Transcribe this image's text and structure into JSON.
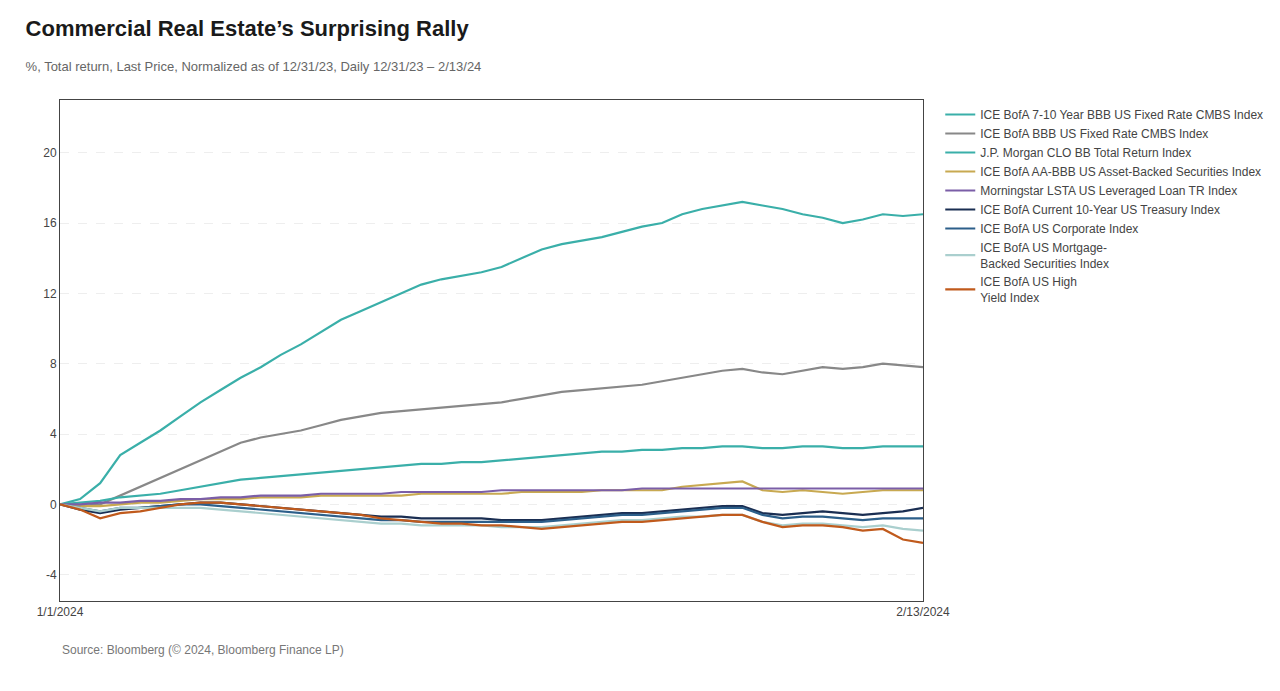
{
  "chart_data": {
    "type": "line",
    "title": "Commercial Real Estate’s Surprising Rally",
    "subtitle": "%, Total return, Last Price, Normalized as of 12/31/23, Daily 12/31/23 – 2/13/24",
    "annotations": [
      "Source: Bloomberg (© 2024, Bloomberg Finance LP)"
    ],
    "categories": [
      "1/1/2024",
      null,
      null,
      null,
      null,
      null,
      null,
      null,
      null,
      null,
      null,
      null,
      null,
      null,
      null,
      null,
      null,
      null,
      null,
      null,
      null,
      null,
      null,
      null,
      null,
      null,
      null,
      null,
      null,
      null,
      null,
      null,
      null,
      null,
      null,
      null,
      null,
      null,
      null,
      null,
      null,
      null,
      null,
      "2/13/2024"
    ],
    "series": [
      {
        "name": "ICE BofA 7-10 Year BBB US Fixed Rate CMBS Index",
        "color": "#3aafa9",
        "values": [
          0,
          0.3,
          1.2,
          2.8,
          3.5,
          4.2,
          5.0,
          5.8,
          6.5,
          7.2,
          7.8,
          8.5,
          9.1,
          9.8,
          10.5,
          11.0,
          11.5,
          12.0,
          12.5,
          12.8,
          13.0,
          13.2,
          13.5,
          14.0,
          14.5,
          14.8,
          15.0,
          15.2,
          15.5,
          15.8,
          16.0,
          16.5,
          16.8,
          17.0,
          17.2,
          17.0,
          16.8,
          16.5,
          16.3,
          16.0,
          16.2,
          16.5,
          16.4,
          16.5
        ]
      },
      {
        "name": "ICE BofA BBB US Fixed Rate CMBS Index",
        "color": "#888888",
        "values": [
          0,
          -0.1,
          0.0,
          0.5,
          1.0,
          1.5,
          2.0,
          2.5,
          3.0,
          3.5,
          3.8,
          4.0,
          4.2,
          4.5,
          4.8,
          5.0,
          5.2,
          5.3,
          5.4,
          5.5,
          5.6,
          5.7,
          5.8,
          6.0,
          6.2,
          6.4,
          6.5,
          6.6,
          6.7,
          6.8,
          7.0,
          7.2,
          7.4,
          7.6,
          7.7,
          7.5,
          7.4,
          7.6,
          7.8,
          7.7,
          7.8,
          8.0,
          7.9,
          7.8
        ]
      },
      {
        "name": "J.P. Morgan CLO BB Total Return Index",
        "color": "#3aafa9",
        "values": [
          0,
          0.1,
          0.2,
          0.4,
          0.5,
          0.6,
          0.8,
          1.0,
          1.2,
          1.4,
          1.5,
          1.6,
          1.7,
          1.8,
          1.9,
          2.0,
          2.1,
          2.2,
          2.3,
          2.3,
          2.4,
          2.4,
          2.5,
          2.6,
          2.7,
          2.8,
          2.9,
          3.0,
          3.0,
          3.1,
          3.1,
          3.2,
          3.2,
          3.3,
          3.3,
          3.2,
          3.2,
          3.3,
          3.3,
          3.2,
          3.2,
          3.3,
          3.3,
          3.3
        ]
      },
      {
        "name": "ICE BofA AA-BBB US Asset-Backed Securities Index",
        "color": "#c8a951",
        "values": [
          0,
          -0.1,
          -0.1,
          0.0,
          0.1,
          0.1,
          0.2,
          0.3,
          0.3,
          0.3,
          0.4,
          0.4,
          0.4,
          0.5,
          0.5,
          0.5,
          0.5,
          0.5,
          0.6,
          0.6,
          0.6,
          0.6,
          0.6,
          0.7,
          0.7,
          0.7,
          0.7,
          0.8,
          0.8,
          0.8,
          0.8,
          1.0,
          1.1,
          1.2,
          1.3,
          0.8,
          0.7,
          0.8,
          0.7,
          0.6,
          0.7,
          0.8,
          0.8,
          0.8
        ]
      },
      {
        "name": "Morningstar LSTA US Leveraged Loan TR Index",
        "color": "#7b5ea7",
        "values": [
          0,
          0.0,
          0.1,
          0.1,
          0.2,
          0.2,
          0.3,
          0.3,
          0.4,
          0.4,
          0.5,
          0.5,
          0.5,
          0.6,
          0.6,
          0.6,
          0.6,
          0.7,
          0.7,
          0.7,
          0.7,
          0.7,
          0.8,
          0.8,
          0.8,
          0.8,
          0.8,
          0.8,
          0.8,
          0.9,
          0.9,
          0.9,
          0.9,
          0.9,
          0.9,
          0.9,
          0.9,
          0.9,
          0.9,
          0.9,
          0.9,
          0.9,
          0.9,
          0.9
        ]
      },
      {
        "name": "ICE BofA Current 10-Year US Treasury Index",
        "color": "#1a2e52",
        "values": [
          0,
          -0.3,
          -0.5,
          -0.3,
          -0.2,
          -0.1,
          0.0,
          0.1,
          0.1,
          0.0,
          -0.1,
          -0.2,
          -0.3,
          -0.4,
          -0.5,
          -0.6,
          -0.7,
          -0.7,
          -0.8,
          -0.8,
          -0.8,
          -0.8,
          -0.9,
          -0.9,
          -0.9,
          -0.8,
          -0.7,
          -0.6,
          -0.5,
          -0.5,
          -0.4,
          -0.3,
          -0.2,
          -0.1,
          -0.1,
          -0.5,
          -0.6,
          -0.5,
          -0.4,
          -0.5,
          -0.6,
          -0.5,
          -0.4,
          -0.2
        ]
      },
      {
        "name": "ICE BofA US Corporate Index",
        "color": "#2c5f8a",
        "values": [
          0,
          -0.2,
          -0.4,
          -0.2,
          -0.2,
          -0.1,
          0.0,
          0.0,
          -0.1,
          -0.2,
          -0.3,
          -0.4,
          -0.5,
          -0.6,
          -0.7,
          -0.8,
          -0.9,
          -0.9,
          -1.0,
          -1.0,
          -1.0,
          -1.0,
          -1.0,
          -1.0,
          -1.0,
          -0.9,
          -0.8,
          -0.7,
          -0.6,
          -0.6,
          -0.5,
          -0.4,
          -0.3,
          -0.2,
          -0.2,
          -0.6,
          -0.8,
          -0.7,
          -0.7,
          -0.8,
          -0.9,
          -0.8,
          -0.8,
          -0.8
        ]
      },
      {
        "name": "ICE BofA US Mortgage-\nBacked Securities Index",
        "color": "#aacfce",
        "values": [
          0,
          -0.2,
          -0.4,
          -0.2,
          -0.2,
          -0.2,
          -0.2,
          -0.2,
          -0.3,
          -0.4,
          -0.5,
          -0.6,
          -0.7,
          -0.8,
          -0.9,
          -1.0,
          -1.1,
          -1.1,
          -1.2,
          -1.2,
          -1.2,
          -1.2,
          -1.3,
          -1.3,
          -1.3,
          -1.2,
          -1.1,
          -1.0,
          -0.9,
          -0.9,
          -0.8,
          -0.7,
          -0.7,
          -0.6,
          -0.6,
          -1.0,
          -1.2,
          -1.1,
          -1.1,
          -1.2,
          -1.3,
          -1.2,
          -1.4,
          -1.5
        ]
      },
      {
        "name": "ICE BofA US High\nYield Index",
        "color": "#c05a1c",
        "values": [
          0,
          -0.3,
          -0.8,
          -0.5,
          -0.4,
          -0.2,
          0.0,
          0.1,
          0.1,
          0.0,
          -0.1,
          -0.2,
          -0.3,
          -0.4,
          -0.5,
          -0.6,
          -0.8,
          -0.9,
          -1.0,
          -1.1,
          -1.1,
          -1.2,
          -1.2,
          -1.3,
          -1.4,
          -1.3,
          -1.2,
          -1.1,
          -1.0,
          -1.0,
          -0.9,
          -0.8,
          -0.7,
          -0.6,
          -0.6,
          -1.0,
          -1.3,
          -1.2,
          -1.2,
          -1.3,
          -1.5,
          -1.4,
          -2.0,
          -2.2
        ]
      }
    ],
    "ylim": [
      -5.5,
      23
    ],
    "yticks": [
      -4,
      0,
      4,
      8,
      12,
      16,
      20
    ],
    "grid": true,
    "legend": "right"
  }
}
